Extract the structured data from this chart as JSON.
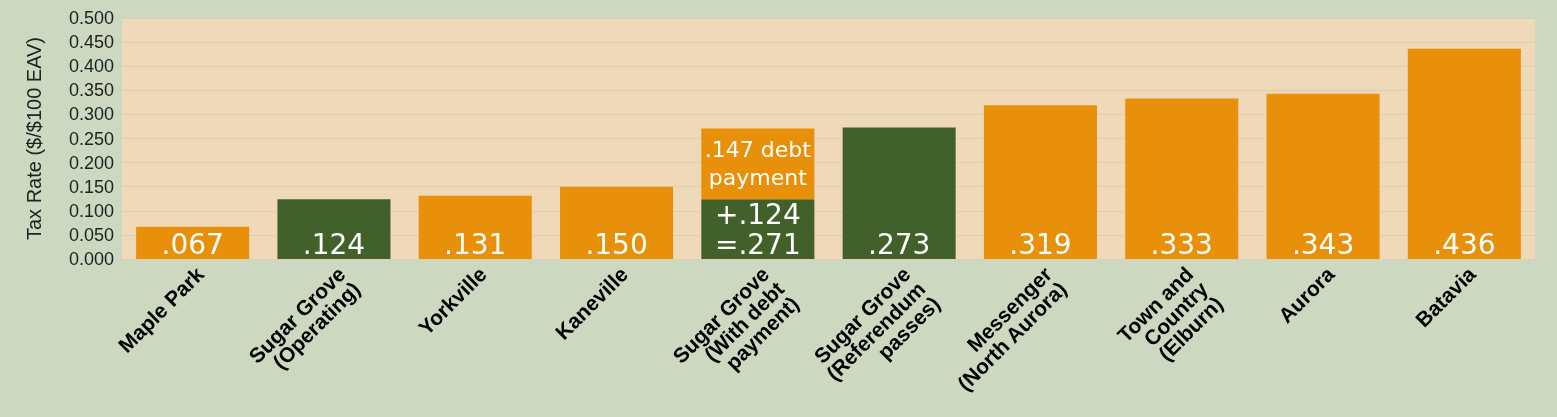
{
  "chart_data": {
    "type": "bar",
    "ylabel": "Tax Rate ($/$100 EAV)",
    "stacked": true,
    "categories": [
      "Maple Park",
      "Sugar Grove\n(Operating)",
      "Yorkville",
      "Kaneville",
      "Sugar Grove\n(With debt\npayment)",
      "Sugar Grove\n(Referendum\npasses)",
      "Messenger\n(North Aurora)",
      "Town and\nCountry\n(Elburn)",
      "Aurora",
      "Batavia"
    ],
    "series": [
      {
        "colors": [
          "#e8900a",
          "#41602a",
          "#e8900a",
          "#e8900a",
          "#41602a",
          "#41602a",
          "#e8900a",
          "#e8900a",
          "#e8900a",
          "#e8900a"
        ],
        "values": [
          0.067,
          0.124,
          0.131,
          0.15,
          0.124,
          0.273,
          0.319,
          0.333,
          0.343,
          0.436
        ],
        "value_labels": [
          ".067",
          ".124",
          ".131",
          ".150",
          "+.124\n=.271",
          ".273",
          ".319",
          ".333",
          ".343",
          ".436"
        ]
      },
      {
        "color": "#e8900a",
        "values": [
          null,
          null,
          null,
          null,
          0.147,
          null,
          null,
          null,
          null,
          null
        ],
        "value_labels": [
          null,
          null,
          null,
          null,
          ".147 debt\npayment",
          null,
          null,
          null,
          null,
          null
        ]
      }
    ],
    "ylim": [
      0,
      0.5
    ],
    "yticks": [
      {
        "value": 0,
        "label": "0.000"
      },
      {
        "value": 0.05,
        "label": "0.050"
      },
      {
        "value": 0.1,
        "label": "0.100"
      },
      {
        "value": 0.15,
        "label": "0.150"
      },
      {
        "value": 0.2,
        "label": "0.200"
      },
      {
        "value": 0.25,
        "label": "0.250"
      },
      {
        "value": 0.3,
        "label": "0.300"
      },
      {
        "value": 0.35,
        "label": "0.350"
      },
      {
        "value": 0.4,
        "label": "0.400"
      },
      {
        "value": 0.45,
        "label": "0.450"
      },
      {
        "value": 0.5,
        "label": "0.500"
      }
    ],
    "grid": "y"
  }
}
